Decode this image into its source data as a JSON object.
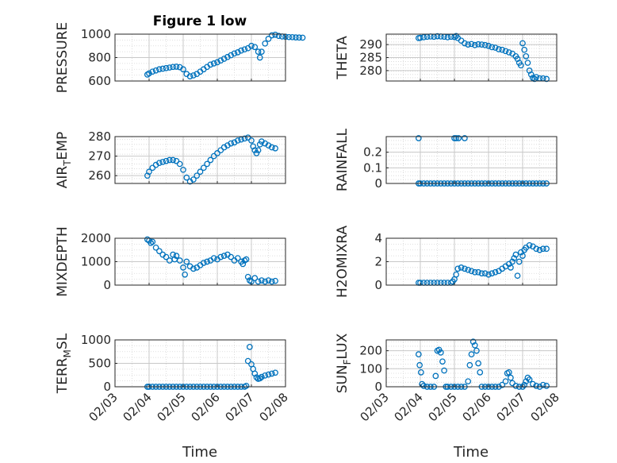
{
  "figure": {
    "title": "Figure 1 low",
    "xlabel": "Time",
    "marker_color": "#0072BD",
    "x_ticks": [
      "02/03",
      "02/04",
      "02/05",
      "02/06",
      "02/07",
      "02/08"
    ]
  },
  "chart_data": [
    {
      "type": "scatter",
      "ylabel": "PRESSURE",
      "xlim": [
        "2021-02-03",
        "2021-02-08"
      ],
      "ylim": [
        600,
        1000
      ],
      "yticks": [
        600,
        800,
        1000
      ],
      "grid": true,
      "x_day": [
        0.95,
        1.0,
        1.1,
        1.2,
        1.3,
        1.4,
        1.5,
        1.6,
        1.7,
        1.8,
        1.9,
        2.0,
        2.1,
        2.2,
        2.3,
        2.4,
        2.5,
        2.6,
        2.7,
        2.8,
        2.9,
        3.0,
        3.1,
        3.2,
        3.3,
        3.4,
        3.5,
        3.6,
        3.7,
        3.8,
        3.9,
        4.0,
        4.1,
        4.2,
        4.25,
        4.3,
        4.4,
        4.5,
        4.6,
        4.7,
        4.8,
        4.9,
        5.0,
        5.1,
        5.2,
        5.3,
        5.4,
        5.5
      ],
      "y": [
        655,
        665,
        680,
        690,
        700,
        705,
        710,
        715,
        720,
        722,
        718,
        700,
        660,
        640,
        648,
        660,
        680,
        700,
        720,
        740,
        750,
        760,
        775,
        790,
        805,
        820,
        835,
        845,
        860,
        870,
        880,
        900,
        890,
        850,
        800,
        850,
        920,
        960,
        990,
        995,
        985,
        980,
        978,
        975,
        974,
        972,
        971,
        970
      ]
    },
    {
      "type": "scatter",
      "ylabel": "THETA",
      "xlim": [
        "2021-02-03",
        "2021-02-08"
      ],
      "ylim": [
        276,
        294
      ],
      "yticks": [
        280,
        285,
        290
      ],
      "grid": true,
      "x_day": [
        0.95,
        1.0,
        1.1,
        1.2,
        1.3,
        1.4,
        1.5,
        1.6,
        1.7,
        1.8,
        1.9,
        2.0,
        2.05,
        2.1,
        2.2,
        2.3,
        2.4,
        2.5,
        2.6,
        2.7,
        2.8,
        2.9,
        3.0,
        3.1,
        3.2,
        3.3,
        3.4,
        3.5,
        3.6,
        3.7,
        3.8,
        3.85,
        3.9,
        3.95,
        4.0,
        4.05,
        4.1,
        4.15,
        4.2,
        4.25,
        4.3,
        4.35,
        4.4,
        4.5,
        4.6,
        4.7
      ],
      "y": [
        292.5,
        292.6,
        292.8,
        293.0,
        293.1,
        293.0,
        293.2,
        293.1,
        293.0,
        292.8,
        293.0,
        292.9,
        293.3,
        292.5,
        291.5,
        290.5,
        290.0,
        290.2,
        289.8,
        290.1,
        290.0,
        289.8,
        289.5,
        289.0,
        288.8,
        288.2,
        288.0,
        287.5,
        287.0,
        286.5,
        285.5,
        284.5,
        283.0,
        282.0,
        290.5,
        288.0,
        285.5,
        283.0,
        280.0,
        278.5,
        277.2,
        276.8,
        277.5,
        277.0,
        277.0,
        276.8
      ]
    },
    {
      "type": "scatter",
      "ylabel": "AIR_TEMP",
      "xlim": [
        "2021-02-03",
        "2021-02-08"
      ],
      "ylim": [
        256,
        280
      ],
      "yticks": [
        260,
        270,
        280
      ],
      "grid": true,
      "x_day": [
        0.95,
        1.0,
        1.1,
        1.2,
        1.3,
        1.4,
        1.5,
        1.6,
        1.7,
        1.8,
        1.9,
        2.0,
        2.1,
        2.2,
        2.3,
        2.4,
        2.5,
        2.6,
        2.7,
        2.8,
        2.9,
        3.0,
        3.1,
        3.2,
        3.3,
        3.4,
        3.5,
        3.6,
        3.7,
        3.8,
        3.9,
        4.0,
        4.05,
        4.1,
        4.15,
        4.2,
        4.25,
        4.3,
        4.4,
        4.5,
        4.6,
        4.7
      ],
      "y": [
        260,
        262,
        264,
        265.5,
        266.5,
        267,
        267.5,
        268,
        268,
        267.5,
        266,
        263,
        259,
        257,
        258,
        260,
        262,
        264,
        266,
        268,
        270,
        271.5,
        273,
        274.5,
        275.5,
        276.5,
        277,
        278,
        278.5,
        279,
        279.5,
        278,
        275,
        273,
        271.5,
        273,
        276,
        277.5,
        276.5,
        275.5,
        274.5,
        274
      ]
    },
    {
      "type": "scatter",
      "ylabel": "RAINFALL",
      "xlim": [
        "2021-02-03",
        "2021-02-08"
      ],
      "ylim": [
        0,
        0.3
      ],
      "yticks": [
        0,
        0.1,
        0.2
      ],
      "grid": true,
      "x_day": [
        0.95,
        1.0,
        1.1,
        1.2,
        1.3,
        1.4,
        1.5,
        1.6,
        1.7,
        1.8,
        1.9,
        2.0,
        2.1,
        2.2,
        2.3,
        2.4,
        2.5,
        2.6,
        2.7,
        2.8,
        2.9,
        3.0,
        3.1,
        3.2,
        3.3,
        3.4,
        3.5,
        3.6,
        3.7,
        3.8,
        3.9,
        4.0,
        4.1,
        4.2,
        4.3,
        4.4,
        4.5,
        4.6,
        4.7,
        0.95,
        2.0,
        2.05,
        2.12,
        2.3
      ],
      "y": [
        0,
        0,
        0,
        0,
        0,
        0,
        0,
        0,
        0,
        0,
        0,
        0,
        0,
        0,
        0,
        0,
        0,
        0,
        0,
        0,
        0,
        0,
        0,
        0,
        0,
        0,
        0,
        0,
        0,
        0,
        0,
        0,
        0,
        0,
        0,
        0,
        0,
        0,
        0,
        0.29,
        0.29,
        0.29,
        0.29,
        0.29
      ]
    },
    {
      "type": "scatter",
      "ylabel": "MIXDEPTH",
      "xlim": [
        "2021-02-03",
        "2021-02-08"
      ],
      "ylim": [
        0,
        2000
      ],
      "yticks": [
        0,
        1000,
        2000
      ],
      "grid": true,
      "x_day": [
        0.95,
        1.0,
        1.05,
        1.1,
        1.2,
        1.3,
        1.4,
        1.5,
        1.6,
        1.7,
        1.75,
        1.8,
        1.9,
        2.0,
        2.05,
        2.1,
        2.2,
        2.3,
        2.4,
        2.5,
        2.6,
        2.7,
        2.8,
        2.9,
        3.0,
        3.1,
        3.2,
        3.3,
        3.4,
        3.5,
        3.6,
        3.7,
        3.75,
        3.8,
        3.85,
        3.9,
        3.95,
        4.0,
        4.1,
        4.2,
        4.3,
        4.4,
        4.5,
        4.6,
        4.7
      ],
      "y": [
        1950,
        1900,
        1800,
        1850,
        1600,
        1450,
        1300,
        1200,
        1050,
        1300,
        1100,
        1250,
        1050,
        750,
        450,
        1000,
        800,
        700,
        750,
        850,
        950,
        1000,
        1050,
        1150,
        1100,
        1200,
        1250,
        1300,
        1200,
        1050,
        1150,
        1000,
        900,
        1050,
        1100,
        350,
        200,
        150,
        300,
        150,
        200,
        150,
        200,
        150,
        180
      ]
    },
    {
      "type": "scatter",
      "ylabel": "H2OMIXRA",
      "xlim": [
        "2021-02-03",
        "2021-02-08"
      ],
      "ylim": [
        0,
        4
      ],
      "yticks": [
        0,
        2,
        4
      ],
      "grid": true,
      "x_day": [
        0.95,
        1.0,
        1.1,
        1.2,
        1.3,
        1.4,
        1.5,
        1.6,
        1.7,
        1.8,
        1.9,
        1.95,
        2.0,
        2.05,
        2.1,
        2.2,
        2.3,
        2.4,
        2.5,
        2.6,
        2.7,
        2.8,
        2.9,
        3.0,
        3.1,
        3.2,
        3.3,
        3.4,
        3.5,
        3.6,
        3.65,
        3.7,
        3.75,
        3.8,
        3.85,
        3.9,
        3.95,
        4.0,
        4.05,
        4.1,
        4.2,
        4.3,
        4.4,
        4.5,
        4.6,
        4.7
      ],
      "y": [
        0.2,
        0.2,
        0.2,
        0.2,
        0.2,
        0.2,
        0.2,
        0.2,
        0.2,
        0.2,
        0.2,
        0.3,
        0.5,
        0.9,
        1.4,
        1.5,
        1.4,
        1.3,
        1.2,
        1.1,
        1.1,
        1.0,
        1.0,
        0.9,
        1.0,
        1.1,
        1.2,
        1.4,
        1.6,
        1.8,
        1.5,
        2.0,
        2.3,
        2.6,
        0.8,
        2.0,
        2.8,
        2.5,
        3.0,
        3.2,
        3.4,
        3.3,
        3.1,
        3.0,
        3.1,
        3.1
      ]
    },
    {
      "type": "scatter",
      "ylabel": "TERR_MSL",
      "xlim": [
        "2021-02-03",
        "2021-02-08"
      ],
      "ylim": [
        0,
        1000
      ],
      "yticks": [
        0,
        500,
        1000
      ],
      "grid": true,
      "x_day": [
        0.95,
        1.0,
        1.1,
        1.2,
        1.3,
        1.4,
        1.5,
        1.6,
        1.7,
        1.8,
        1.9,
        2.0,
        2.1,
        2.2,
        2.3,
        2.4,
        2.5,
        2.6,
        2.7,
        2.8,
        2.9,
        3.0,
        3.1,
        3.2,
        3.3,
        3.4,
        3.5,
        3.6,
        3.7,
        3.8,
        3.85,
        3.9,
        3.95,
        4.0,
        4.05,
        4.1,
        4.15,
        4.2,
        4.25,
        4.3,
        4.4,
        4.5,
        4.6,
        4.7
      ],
      "y": [
        0,
        0,
        0,
        0,
        0,
        0,
        0,
        0,
        0,
        0,
        0,
        0,
        0,
        0,
        0,
        0,
        0,
        0,
        0,
        0,
        0,
        0,
        0,
        0,
        0,
        0,
        0,
        0,
        0,
        0,
        20,
        550,
        850,
        480,
        380,
        280,
        200,
        170,
        180,
        210,
        240,
        260,
        280,
        300
      ]
    },
    {
      "type": "scatter",
      "ylabel": "SUN_FLUX",
      "xlim": [
        "2021-02-03",
        "2021-02-08"
      ],
      "ylim": [
        0,
        260
      ],
      "yticks": [
        0,
        100,
        200
      ],
      "grid": true,
      "x_day": [
        0.95,
        0.98,
        1.02,
        1.05,
        1.1,
        1.2,
        1.3,
        1.4,
        1.45,
        1.5,
        1.55,
        1.6,
        1.65,
        1.7,
        1.75,
        1.8,
        1.9,
        2.0,
        2.1,
        2.2,
        2.3,
        2.4,
        2.45,
        2.5,
        2.55,
        2.6,
        2.65,
        2.7,
        2.75,
        2.8,
        2.9,
        3.0,
        3.1,
        3.2,
        3.3,
        3.4,
        3.5,
        3.55,
        3.6,
        3.65,
        3.7,
        3.8,
        3.9,
        4.0,
        4.05,
        4.1,
        4.15,
        4.2,
        4.3,
        4.4,
        4.5,
        4.6,
        4.7
      ],
      "y": [
        180,
        120,
        80,
        15,
        5,
        0,
        0,
        0,
        60,
        200,
        205,
        190,
        140,
        90,
        0,
        0,
        0,
        0,
        0,
        0,
        0,
        30,
        120,
        180,
        250,
        230,
        200,
        130,
        80,
        0,
        0,
        0,
        0,
        0,
        0,
        10,
        30,
        75,
        80,
        50,
        20,
        5,
        0,
        0,
        10,
        30,
        50,
        40,
        15,
        5,
        0,
        10,
        5
      ]
    }
  ]
}
